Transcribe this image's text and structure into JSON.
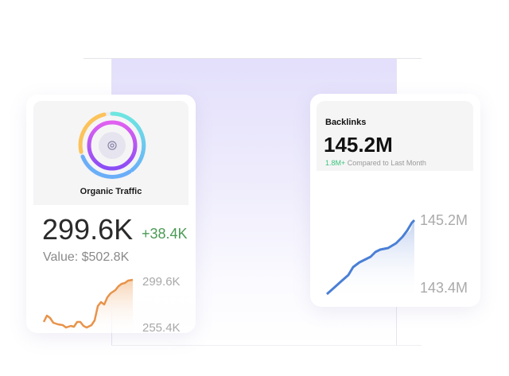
{
  "organic_traffic": {
    "title": "Organic Traffic",
    "value": "299.6K",
    "change": "+38.4K",
    "value_label": "Value: $502.8K",
    "chart_max_label": "299.6K",
    "chart_min_label": "255.4K",
    "icon": "target-icon",
    "colors": {
      "change": "#4a9a55",
      "line": "#e8934a"
    }
  },
  "backlinks": {
    "title": "Backlinks",
    "value": "145.2M",
    "change": "1.8M+",
    "change_suffix": "Compared to Last Month",
    "chart_max_label": "145.2M",
    "chart_min_label": "143.4M",
    "colors": {
      "change": "#3cc47a",
      "line": "#4a7fd6"
    }
  }
}
